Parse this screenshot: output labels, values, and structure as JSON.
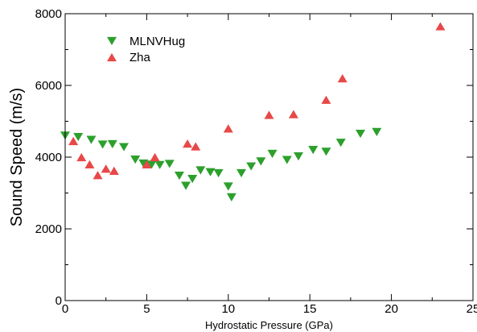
{
  "chart_data": {
    "type": "scatter",
    "xlabel": "Hydrostatic Pressure (GPa)",
    "ylabel": "Sound Speed (m/s)",
    "xlim": [
      0,
      25
    ],
    "ylim": [
      0,
      8000
    ],
    "x_ticks": [
      0,
      5,
      10,
      15,
      20,
      25
    ],
    "y_ticks": [
      0,
      2000,
      4000,
      6000,
      8000
    ],
    "x_tick_labels": [
      "0",
      "5",
      "10",
      "15",
      "20",
      "25"
    ],
    "y_tick_labels": [
      "0",
      "2000",
      "4000",
      "6000",
      "8000"
    ],
    "grid": false,
    "legend_position": "top-left",
    "series": [
      {
        "name": "MLNVHug",
        "marker": "triangle-down",
        "color": "#2ca02c",
        "points": [
          [
            0.0,
            4600
          ],
          [
            0.8,
            4560
          ],
          [
            1.6,
            4480
          ],
          [
            2.3,
            4350
          ],
          [
            2.9,
            4360
          ],
          [
            3.6,
            4280
          ],
          [
            4.3,
            3930
          ],
          [
            4.8,
            3820
          ],
          [
            5.3,
            3790
          ],
          [
            5.8,
            3780
          ],
          [
            6.4,
            3810
          ],
          [
            7.0,
            3480
          ],
          [
            7.4,
            3200
          ],
          [
            7.8,
            3390
          ],
          [
            8.3,
            3630
          ],
          [
            8.9,
            3580
          ],
          [
            9.4,
            3550
          ],
          [
            10.0,
            3180
          ],
          [
            10.2,
            2880
          ],
          [
            10.8,
            3550
          ],
          [
            11.4,
            3740
          ],
          [
            12.0,
            3880
          ],
          [
            12.7,
            4090
          ],
          [
            13.6,
            3920
          ],
          [
            14.3,
            4020
          ],
          [
            15.2,
            4200
          ],
          [
            16.0,
            4150
          ],
          [
            16.9,
            4400
          ],
          [
            18.1,
            4650
          ],
          [
            19.1,
            4700
          ]
        ]
      },
      {
        "name": "Zha",
        "marker": "triangle-up",
        "color": "#e84848",
        "points": [
          [
            0.5,
            4450
          ],
          [
            1.0,
            4000
          ],
          [
            1.5,
            3800
          ],
          [
            2.0,
            3500
          ],
          [
            2.5,
            3680
          ],
          [
            3.0,
            3620
          ],
          [
            5.0,
            3800
          ],
          [
            5.5,
            4000
          ],
          [
            7.5,
            4380
          ],
          [
            8.0,
            4300
          ],
          [
            10.0,
            4800
          ],
          [
            12.5,
            5180
          ],
          [
            14.0,
            5200
          ],
          [
            16.0,
            5600
          ],
          [
            17.0,
            6200
          ],
          [
            23.0,
            7650
          ]
        ]
      }
    ]
  }
}
